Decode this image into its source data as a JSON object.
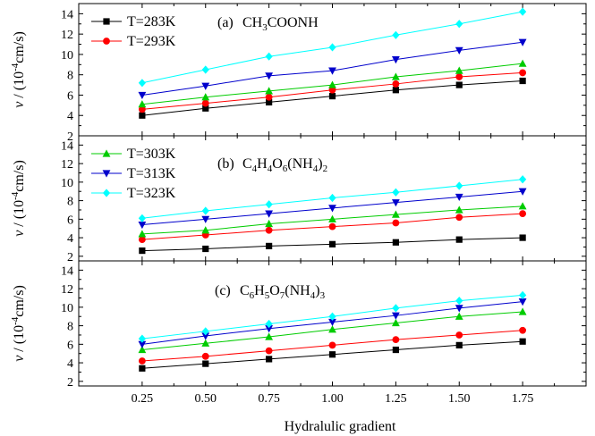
{
  "chart_data": [
    {
      "type": "line",
      "panel_label": "(a)",
      "compound": {
        "base": "CH",
        "sub1": "3",
        "mid": "COONH",
        "sub2": "",
        "tail": "",
        "sub3": ""
      },
      "x": [
        0.25,
        0.5,
        0.75,
        1.0,
        1.25,
        1.5,
        1.75
      ],
      "ylim": [
        2,
        15
      ],
      "yticks": [
        2,
        4,
        6,
        8,
        10,
        12,
        14
      ],
      "legend": {
        "placement": "top-left",
        "series_indices": [
          0,
          1
        ]
      },
      "series": [
        {
          "name": "T=283K",
          "color": "#000000",
          "marker": "square",
          "values": [
            4.0,
            4.7,
            5.3,
            5.9,
            6.5,
            7.0,
            7.4
          ]
        },
        {
          "name": "T=293K",
          "color": "#ff0000",
          "marker": "circle",
          "values": [
            4.6,
            5.2,
            5.8,
            6.5,
            7.1,
            7.8,
            8.2
          ]
        },
        {
          "name": "T=303K",
          "color": "#00cc00",
          "marker": "triangle-up",
          "values": [
            5.1,
            5.8,
            6.4,
            7.0,
            7.8,
            8.4,
            9.1
          ]
        },
        {
          "name": "T=313K",
          "color": "#0000cc",
          "marker": "triangle-down",
          "values": [
            6.0,
            6.9,
            7.9,
            8.4,
            9.5,
            10.4,
            11.2
          ]
        },
        {
          "name": "T=323K",
          "color": "#00ffff",
          "marker": "diamond",
          "values": [
            7.2,
            8.5,
            9.8,
            10.7,
            11.9,
            13.0,
            14.2
          ]
        }
      ]
    },
    {
      "type": "line",
      "panel_label": "(b)",
      "compound": {
        "base": "C",
        "sub1": "4",
        "mid": "H",
        "sub2": "4",
        "tail": "O",
        "sub3": "6",
        "tail2": "(NH",
        "sub4": "4",
        "tail3": ")",
        "sub5": "2"
      },
      "x": [
        0.25,
        0.5,
        0.75,
        1.0,
        1.25,
        1.5,
        1.75
      ],
      "ylim": [
        1.5,
        15
      ],
      "yticks": [
        2,
        4,
        6,
        8,
        10,
        12,
        14
      ],
      "legend": {
        "placement": "top-left",
        "series_indices": [
          2,
          3,
          4
        ]
      },
      "series": [
        {
          "name": "T=283K",
          "color": "#000000",
          "marker": "square",
          "values": [
            2.6,
            2.8,
            3.1,
            3.3,
            3.5,
            3.8,
            4.0
          ]
        },
        {
          "name": "T=293K",
          "color": "#ff0000",
          "marker": "circle",
          "values": [
            3.8,
            4.3,
            4.8,
            5.2,
            5.6,
            6.2,
            6.6
          ]
        },
        {
          "name": "T=303K",
          "color": "#00cc00",
          "marker": "triangle-up",
          "values": [
            4.4,
            4.8,
            5.5,
            6.0,
            6.5,
            7.0,
            7.4
          ]
        },
        {
          "name": "T=313K",
          "color": "#0000cc",
          "marker": "triangle-down",
          "values": [
            5.4,
            6.0,
            6.6,
            7.2,
            7.8,
            8.4,
            9.0
          ]
        },
        {
          "name": "T=323K",
          "color": "#00ffff",
          "marker": "diamond",
          "values": [
            6.1,
            6.9,
            7.6,
            8.3,
            8.9,
            9.6,
            10.3
          ]
        }
      ]
    },
    {
      "type": "line",
      "panel_label": "(c)",
      "compound": {
        "base": "C",
        "sub1": "6",
        "mid": "H",
        "sub2": "5",
        "tail": "O",
        "sub3": "7",
        "tail2": "(NH",
        "sub4": "4",
        "tail3": ")",
        "sub5": "3"
      },
      "x": [
        0.25,
        0.5,
        0.75,
        1.0,
        1.25,
        1.5,
        1.75
      ],
      "ylim": [
        1.5,
        15
      ],
      "yticks": [
        2,
        4,
        6,
        8,
        10,
        12,
        14
      ],
      "legend": {
        "placement": "none",
        "series_indices": []
      },
      "series": [
        {
          "name": "T=283K",
          "color": "#000000",
          "marker": "square",
          "values": [
            3.4,
            3.9,
            4.4,
            4.9,
            5.4,
            5.9,
            6.3
          ]
        },
        {
          "name": "T=293K",
          "color": "#ff0000",
          "marker": "circle",
          "values": [
            4.2,
            4.7,
            5.3,
            5.9,
            6.5,
            7.0,
            7.5
          ]
        },
        {
          "name": "T=303K",
          "color": "#00cc00",
          "marker": "triangle-up",
          "values": [
            5.4,
            6.1,
            6.8,
            7.6,
            8.3,
            9.0,
            9.5
          ]
        },
        {
          "name": "T=313K",
          "color": "#0000cc",
          "marker": "triangle-down",
          "values": [
            6.0,
            6.9,
            7.7,
            8.4,
            9.1,
            9.9,
            10.6
          ]
        },
        {
          "name": "T=323K",
          "color": "#00ffff",
          "marker": "diamond",
          "values": [
            6.6,
            7.4,
            8.2,
            9.0,
            9.9,
            10.7,
            11.3
          ]
        }
      ]
    }
  ],
  "axes": {
    "xlabel": "Hydralulic gradient",
    "ylabel": "v / (10",
    "ylabel_sup": "-4",
    "ylabel_tail": "cm/s)",
    "xticks": [
      0.25,
      0.5,
      0.75,
      1.0,
      1.25,
      1.5,
      1.75
    ],
    "xtick_labels": [
      "0.25",
      "0.50",
      "0.75",
      "1.00",
      "1.25",
      "1.50",
      "1.75"
    ],
    "xlim": [
      0.0,
      2.0
    ]
  }
}
